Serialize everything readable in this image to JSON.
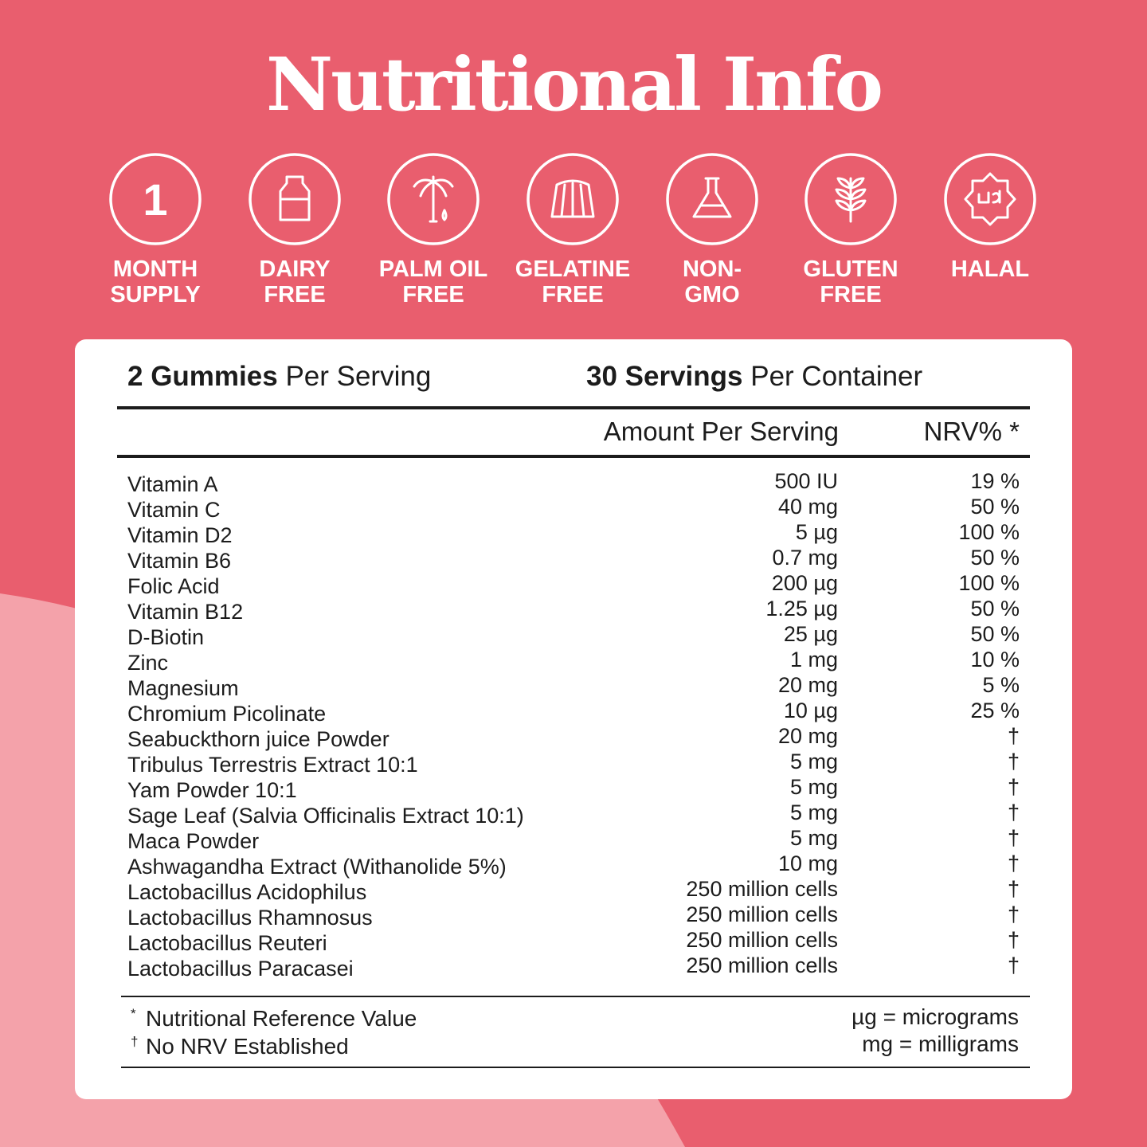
{
  "title": "Nutritional Info",
  "badges": [
    {
      "icon": "1",
      "lines": [
        "MONTH",
        "SUPPLY"
      ]
    },
    {
      "lines": [
        "DAIRY",
        "FREE"
      ]
    },
    {
      "lines": [
        "PALM OIL",
        "FREE"
      ]
    },
    {
      "lines": [
        "GELATINE",
        "FREE"
      ]
    },
    {
      "lines": [
        "NON-",
        "GMO"
      ]
    },
    {
      "lines": [
        "GLUTEN",
        "FREE"
      ]
    },
    {
      "lines": [
        "HALAL"
      ]
    }
  ],
  "serving": {
    "bold": "2 Gummies",
    "rest": "Per Serving"
  },
  "container": {
    "bold": "30 Servings",
    "rest": "Per Container"
  },
  "table": {
    "columns": [
      "Amount Per Serving",
      "NRV% *"
    ],
    "rows": [
      [
        "Vitamin A",
        "500 IU",
        "19 %"
      ],
      [
        "Vitamin C",
        "40 mg",
        "50 %"
      ],
      [
        "Vitamin D2",
        "5 µg",
        "100 %"
      ],
      [
        "Vitamin B6",
        "0.7 mg",
        "50 %"
      ],
      [
        "Folic Acid",
        "200 µg",
        "100 %"
      ],
      [
        "Vitamin B12",
        "1.25 µg",
        "50 %"
      ],
      [
        "D-Biotin",
        "25 µg",
        "50 %"
      ],
      [
        "Zinc",
        "1 mg",
        "10 %"
      ],
      [
        "Magnesium",
        "20 mg",
        "5 %"
      ],
      [
        "Chromium Picolinate",
        "10 µg",
        "25 %"
      ],
      [
        "Seabuckthorn juice Powder",
        "20 mg",
        "†"
      ],
      [
        "Tribulus Terrestris Extract 10:1",
        "5 mg",
        "†"
      ],
      [
        "Yam Powder 10:1",
        "5 mg",
        "†"
      ],
      [
        "Sage Leaf (Salvia Officinalis Extract 10:1)",
        "5 mg",
        "†"
      ],
      [
        "Maca Powder",
        "5 mg",
        "†"
      ],
      [
        "Ashwagandha Extract (Withanolide 5%)",
        "10 mg",
        "†"
      ],
      [
        "Lactobacillus Acidophilus",
        "250 million cells",
        "†"
      ],
      [
        "Lactobacillus Rhamnosus",
        "250 million cells",
        "†"
      ],
      [
        "Lactobacillus Reuteri",
        "250 million cells",
        "†"
      ],
      [
        "Lactobacillus Paracasei",
        "250 million cells",
        "†"
      ]
    ]
  },
  "footnotes": {
    "left": [
      {
        "mark": "*",
        "text": "Nutritional Reference Value"
      },
      {
        "mark": "†",
        "text": "No NRV Established"
      }
    ],
    "right": [
      "µg = micrograms",
      "mg = milligrams"
    ]
  }
}
